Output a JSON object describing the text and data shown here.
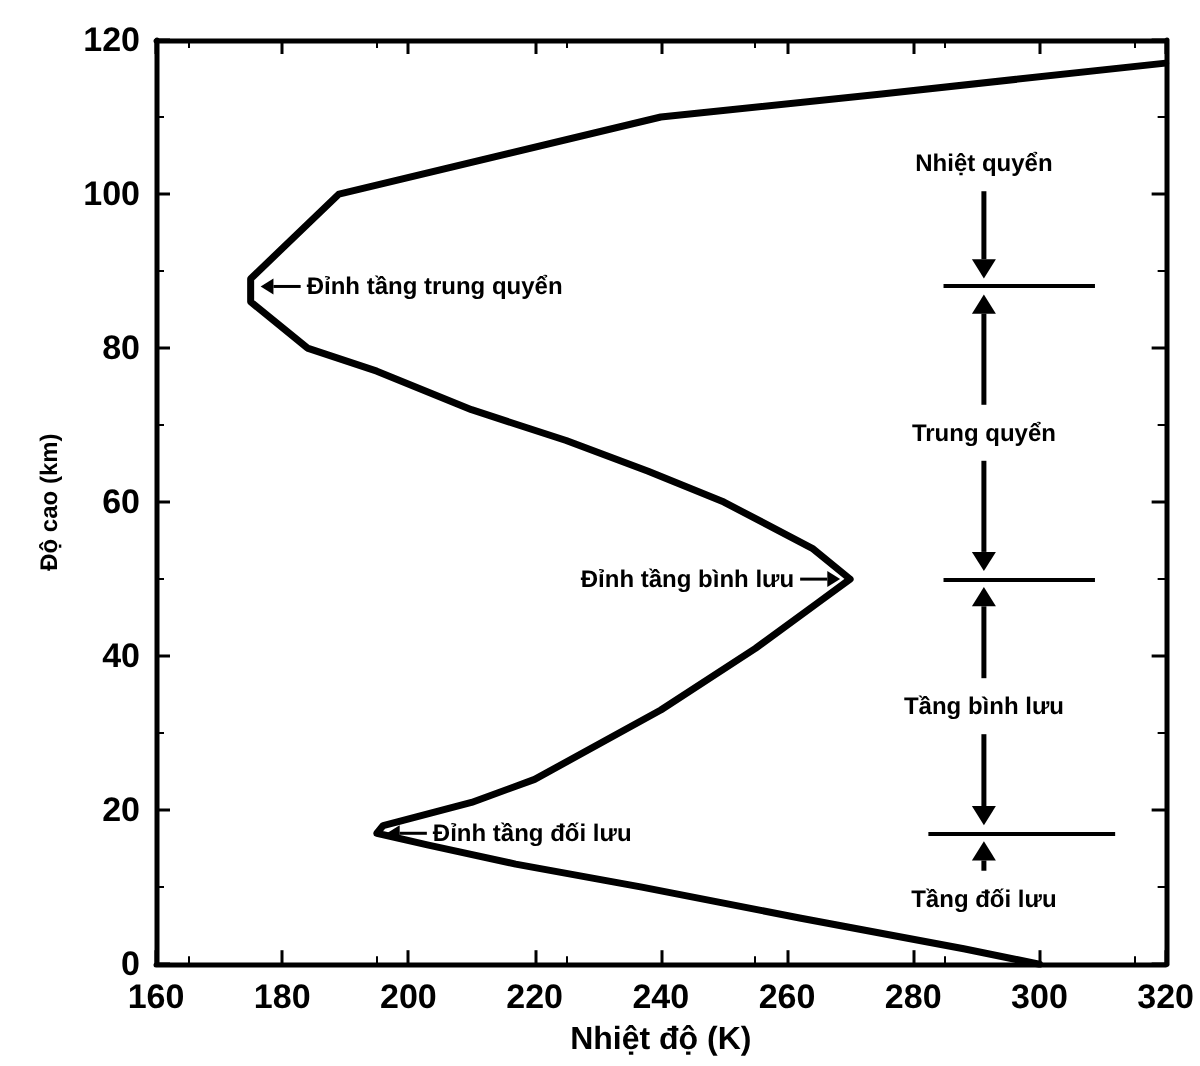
{
  "chart_data": {
    "type": "line",
    "xlabel": "Nhiệt độ (K)",
    "ylabel": "Độ cao (km)",
    "series": [
      {
        "color": "#000000",
        "x": [
          300,
          288,
          262,
          237,
          217,
          203,
          195,
          196,
          210,
          220,
          240,
          255,
          265,
          270,
          264,
          250,
          238,
          225,
          210,
          195,
          184,
          175,
          175,
          189,
          240,
          275,
          320
        ],
        "values": [
          0,
          2,
          6,
          10,
          13,
          15.5,
          17,
          18,
          21,
          24,
          33,
          41,
          47,
          50,
          54,
          60,
          64,
          68,
          72,
          77,
          80,
          86,
          89,
          100,
          110,
          113,
          117
        ]
      }
    ],
    "xlim": [
      160,
      320
    ],
    "xticks": [
      160,
      180,
      200,
      220,
      240,
      260,
      280,
      300,
      320
    ],
    "ylim": [
      0,
      120
    ],
    "yticks": [
      0,
      20,
      40,
      60,
      80,
      100,
      120
    ],
    "ref_lines": [
      {
        "axis": "y",
        "value": 88,
        "color": "#000000"
      },
      {
        "axis": "y",
        "value": 50,
        "color": "#000000"
      },
      {
        "axis": "y",
        "value": 17,
        "color": "#000000"
      }
    ],
    "annotations": [
      {
        "text": "Đỉnh tầng trung quyển",
        "x": 175,
        "y": 88
      },
      {
        "text": "Đỉnh tầng bình lưu",
        "x": 270,
        "y": 50
      },
      {
        "text": "Đỉnh tầng đối lưu",
        "x": 195,
        "y": 17
      },
      "Nhiệt quyển",
      "Trung quyển",
      "Tầng bình lưu",
      "Tầng đối lưu"
    ],
    "grid": false,
    "marker": "none",
    "line_style": "solid"
  }
}
